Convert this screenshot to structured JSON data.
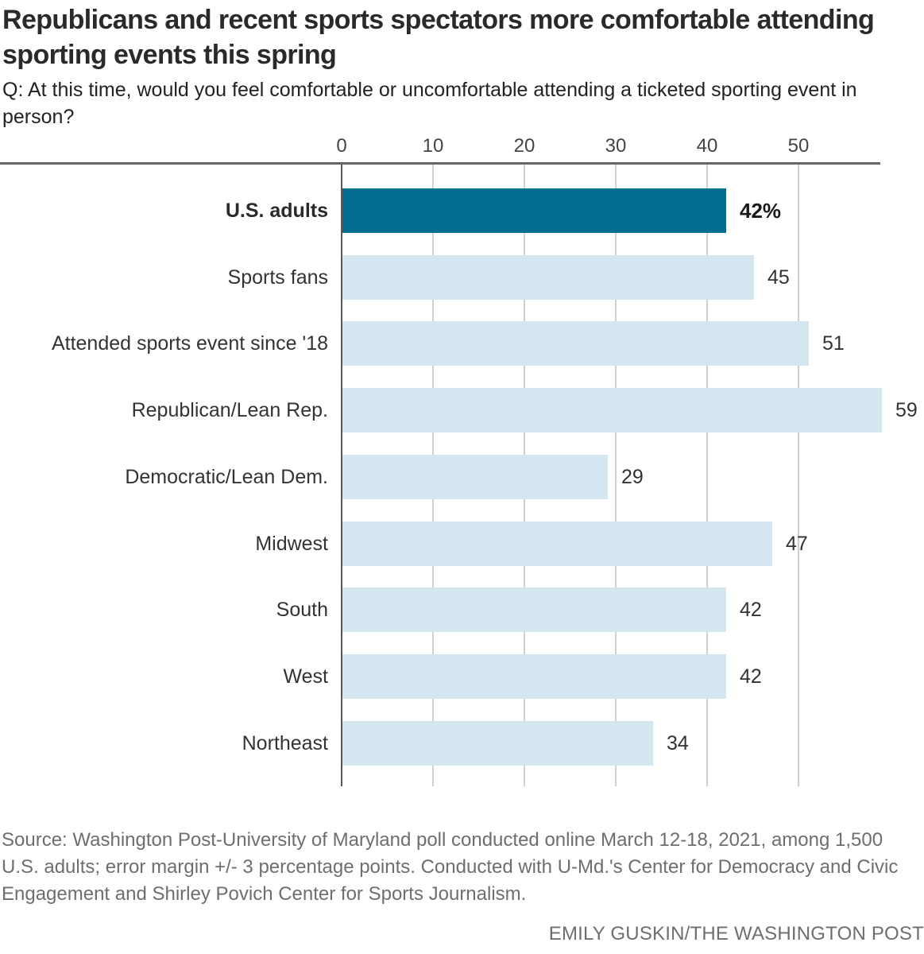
{
  "chart_data": {
    "type": "bar",
    "orientation": "horizontal",
    "title": "Republicans and recent sports spectators more comfortable attending sporting events this spring",
    "subtitle": "Q: At this time, would you feel comfortable or uncomfortable attending a ticketed sporting event in person?",
    "categories": [
      "U.S. adults",
      "Sports fans",
      "Attended sports event since '18",
      "Republican/Lean Rep.",
      "Democratic/Lean Dem.",
      "Midwest",
      "South",
      "West",
      "Northeast"
    ],
    "values": [
      42,
      45,
      51,
      59,
      29,
      47,
      42,
      42,
      34
    ],
    "value_labels": [
      "42%",
      "45",
      "51",
      "59",
      "29",
      "47",
      "42",
      "42",
      "34"
    ],
    "highlight_index": 0,
    "ticks": [
      0,
      10,
      20,
      30,
      40,
      50
    ],
    "xlim": [
      0,
      63.7
    ],
    "grid": true,
    "legend": false,
    "xlabel": "",
    "ylabel": "",
    "colors": {
      "highlight_bar": "#026e90",
      "bar": "#d6e6f0",
      "gridline": "#d0d0d0",
      "axis_line": "#55585a",
      "top_rule": "#666666",
      "title_text": "#2a2a2a",
      "subtitle_text": "#222222",
      "label_text": "#333333",
      "tick_text": "#444444",
      "note_text": "#6e6e6e"
    }
  },
  "notes": {
    "source": "Source: Washington Post-University of Maryland poll conducted online March 12-18, 2021, among 1,500 U.S. adults; error margin +/- 3 percentage points. Conducted with U-Md.'s Center for Democracy and Civic Engagement and Shirley Povich Center for Sports Journalism.",
    "credit": "EMILY GUSKIN/THE WASHINGTON POST"
  }
}
